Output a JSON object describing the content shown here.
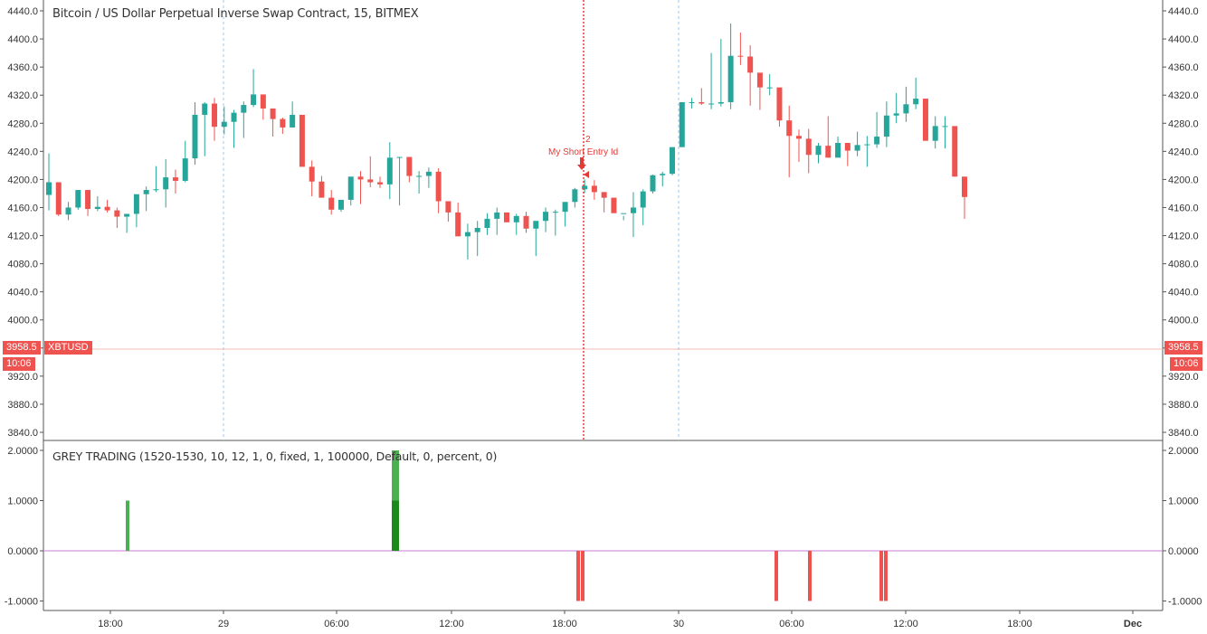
{
  "header": {
    "title": "Bitcoin / US Dollar Perpetual Inverse Swap Contract, 15, BITMEX"
  },
  "indicator": {
    "title": "GREY TRADING (1520-1530, 10, 12, 1, 0, fixed, 1, 100000, Default, 0, percent, 0)"
  },
  "price_tags": {
    "last_price": "3958.5",
    "symbol": "XBTUSD",
    "countdown": "10:06"
  },
  "annotation": {
    "label": "My Short Entry Id",
    "number": "2"
  },
  "colors": {
    "up": "#26a69a",
    "down": "#ef5350",
    "signal_long": "#4caf50",
    "signal_long_dark": "#1b8a1b",
    "zero_line": "#c77dd6",
    "axis": "#555555",
    "price_line": "#f6b8b6",
    "session_line": "#9ec5f0"
  },
  "chart_data": [
    {
      "type": "candlestick",
      "title": "Bitcoin / US Dollar Perpetual Inverse Swap Contract, 15, BITMEX",
      "xlabel": "",
      "ylabel": "",
      "x_ticks": [
        "18:00",
        "29",
        "06:00",
        "12:00",
        "18:00",
        "30",
        "06:00",
        "12:00",
        "18:00",
        "Dec"
      ],
      "y_ticks": [
        "4440.0",
        "4400.0",
        "4360.0",
        "4320.0",
        "4280.0",
        "4240.0",
        "4200.0",
        "4160.0",
        "4120.0",
        "4080.0",
        "4040.0",
        "4000.0",
        "3960.0",
        "3920.0",
        "3880.0",
        "3840.0"
      ],
      "ylim": [
        3830,
        4446
      ],
      "last_price": 3958.5,
      "annotations": [
        "My Short Entry Id (2) at ~18:30 on 29"
      ],
      "candles_ohlc": [
        [
          4178,
          4237,
          4156,
          4196
        ],
        [
          4196,
          4196,
          4148,
          4150
        ],
        [
          4150,
          4168,
          4142,
          4160
        ],
        [
          4160,
          4185,
          4157,
          4185
        ],
        [
          4185,
          4185,
          4148,
          4158
        ],
        [
          4158,
          4176,
          4155,
          4161
        ],
        [
          4161,
          4171,
          4153,
          4156
        ],
        [
          4156,
          4160,
          4131,
          4147
        ],
        [
          4147,
          4147,
          4124,
          4151
        ],
        [
          4151,
          4176,
          4132,
          4179
        ],
        [
          4179,
          4190,
          4155,
          4185
        ],
        [
          4185,
          4219,
          4182,
          4186
        ],
        [
          4186,
          4229,
          4160,
          4203
        ],
        [
          4203,
          4214,
          4180,
          4198
        ],
        [
          4198,
          4255,
          4196,
          4230
        ],
        [
          4230,
          4310,
          4221,
          4292
        ],
        [
          4292,
          4310,
          4233,
          4308
        ],
        [
          4308,
          4316,
          4255,
          4275
        ],
        [
          4275,
          4304,
          4264,
          4282
        ],
        [
          4282,
          4299,
          4245,
          4295
        ],
        [
          4295,
          4311,
          4259,
          4306
        ],
        [
          4306,
          4357,
          4303,
          4321
        ],
        [
          4321,
          4321,
          4285,
          4301
        ],
        [
          4301,
          4301,
          4261,
          4286
        ],
        [
          4286,
          4288,
          4265,
          4274
        ],
        [
          4274,
          4311,
          4274,
          4292
        ],
        [
          4292,
          4292,
          4233,
          4218
        ],
        [
          4218,
          4227,
          4176,
          4197
        ],
        [
          4197,
          4205,
          4181,
          4174
        ],
        [
          4174,
          4185,
          4150,
          4157
        ],
        [
          4157,
          4171,
          4154,
          4171
        ],
        [
          4171,
          4201,
          4163,
          4204
        ],
        [
          4204,
          4212,
          4165,
          4200
        ],
        [
          4200,
          4233,
          4189,
          4196
        ],
        [
          4196,
          4204,
          4188,
          4193
        ],
        [
          4193,
          4253,
          4172,
          4231
        ],
        [
          4231,
          4231,
          4163,
          4232
        ],
        [
          4232,
          4232,
          4196,
          4205
        ],
        [
          4205,
          4212,
          4180,
          4205
        ],
        [
          4205,
          4217,
          4188,
          4211
        ],
        [
          4211,
          4216,
          4152,
          4169
        ],
        [
          4169,
          4168,
          4140,
          4153
        ],
        [
          4153,
          4167,
          4123,
          4119
        ],
        [
          4119,
          4137,
          4086,
          4125
        ],
        [
          4125,
          4141,
          4091,
          4131
        ],
        [
          4131,
          4152,
          4121,
          4144
        ],
        [
          4144,
          4160,
          4121,
          4153
        ],
        [
          4153,
          4149,
          4139,
          4139
        ],
        [
          4139,
          4151,
          4121,
          4148
        ],
        [
          4148,
          4154,
          4124,
          4130
        ],
        [
          4130,
          4136,
          4091,
          4141
        ],
        [
          4141,
          4160,
          4125,
          4154
        ],
        [
          4154,
          4157,
          4120,
          4154
        ],
        [
          4154,
          4167,
          4133,
          4168
        ],
        [
          4168,
          4188,
          4160,
          4186
        ],
        [
          4186,
          4200,
          4181,
          4191
        ],
        [
          4191,
          4199,
          4171,
          4182
        ],
        [
          4182,
          4182,
          4153,
          4174
        ],
        [
          4174,
          4174,
          4156,
          4152
        ],
        [
          4152,
          4148,
          4142,
          4152
        ],
        [
          4152,
          4182,
          4118,
          4160
        ],
        [
          4160,
          4186,
          4135,
          4183
        ],
        [
          4183,
          4207,
          4180,
          4206
        ],
        [
          4206,
          4211,
          4190,
          4208
        ],
        [
          4208,
          4232,
          4206,
          4246
        ],
        [
          4246,
          4310,
          4246,
          4310
        ],
        [
          4310,
          4316,
          4301,
          4310
        ],
        [
          4310,
          4330,
          4306,
          4308
        ],
        [
          4308,
          4380,
          4300,
          4308
        ],
        [
          4308,
          4400,
          4304,
          4310
        ],
        [
          4310,
          4422,
          4300,
          4376
        ],
        [
          4376,
          4409,
          4363,
          4375
        ],
        [
          4375,
          4391,
          4305,
          4352
        ],
        [
          4352,
          4334,
          4299,
          4331
        ],
        [
          4331,
          4350,
          4320,
          4331
        ],
        [
          4331,
          4326,
          4275,
          4284
        ],
        [
          4284,
          4305,
          4203,
          4262
        ],
        [
          4262,
          4271,
          4225,
          4258
        ],
        [
          4258,
          4272,
          4209,
          4235
        ],
        [
          4235,
          4252,
          4223,
          4248
        ],
        [
          4248,
          4290,
          4245,
          4231
        ],
        [
          4231,
          4261,
          4241,
          4252
        ],
        [
          4252,
          4246,
          4219,
          4241
        ],
        [
          4241,
          4268,
          4233,
          4249
        ],
        [
          4249,
          4262,
          4218,
          4250
        ],
        [
          4250,
          4296,
          4245,
          4261
        ],
        [
          4261,
          4311,
          4246,
          4291
        ],
        [
          4291,
          4323,
          4280,
          4294
        ],
        [
          4294,
          4332,
          4282,
          4307
        ],
        [
          4307,
          4345,
          4300,
          4315
        ],
        [
          4315,
          4315,
          4257,
          4255
        ],
        [
          4255,
          4290,
          4244,
          4276
        ],
        [
          4276,
          4290,
          4244,
          4276
        ],
        [
          4276,
          4260,
          4204,
          4204
        ],
        [
          4204,
          4192,
          4144,
          4175
        ]
      ]
    },
    {
      "type": "bar",
      "title": "GREY TRADING (1520-1530, 10, 12, 1, 0, fixed, 1, 100000, Default, 0, percent, 0)",
      "y_ticks": [
        "2.0000",
        "1.0000",
        "0.0000",
        "-1.0000"
      ],
      "ylim": [
        -1.0,
        2.0
      ],
      "signals": [
        {
          "time": "~19:15 (28th)",
          "value": 1
        },
        {
          "time": "~09:00 (29th)",
          "value": 2
        },
        {
          "time": "~09:15 (29th)",
          "value": 2
        },
        {
          "time": "~18:45 (29th)",
          "value": -1
        },
        {
          "time": "~19:00 (29th)",
          "value": -1
        },
        {
          "time": "~05:30 (30th)",
          "value": -1
        },
        {
          "time": "~07:00 (30th)",
          "value": -1
        },
        {
          "time": "~10:45 (30th)",
          "value": -1
        },
        {
          "time": "~11:00 (30th)",
          "value": -1
        }
      ]
    }
  ]
}
